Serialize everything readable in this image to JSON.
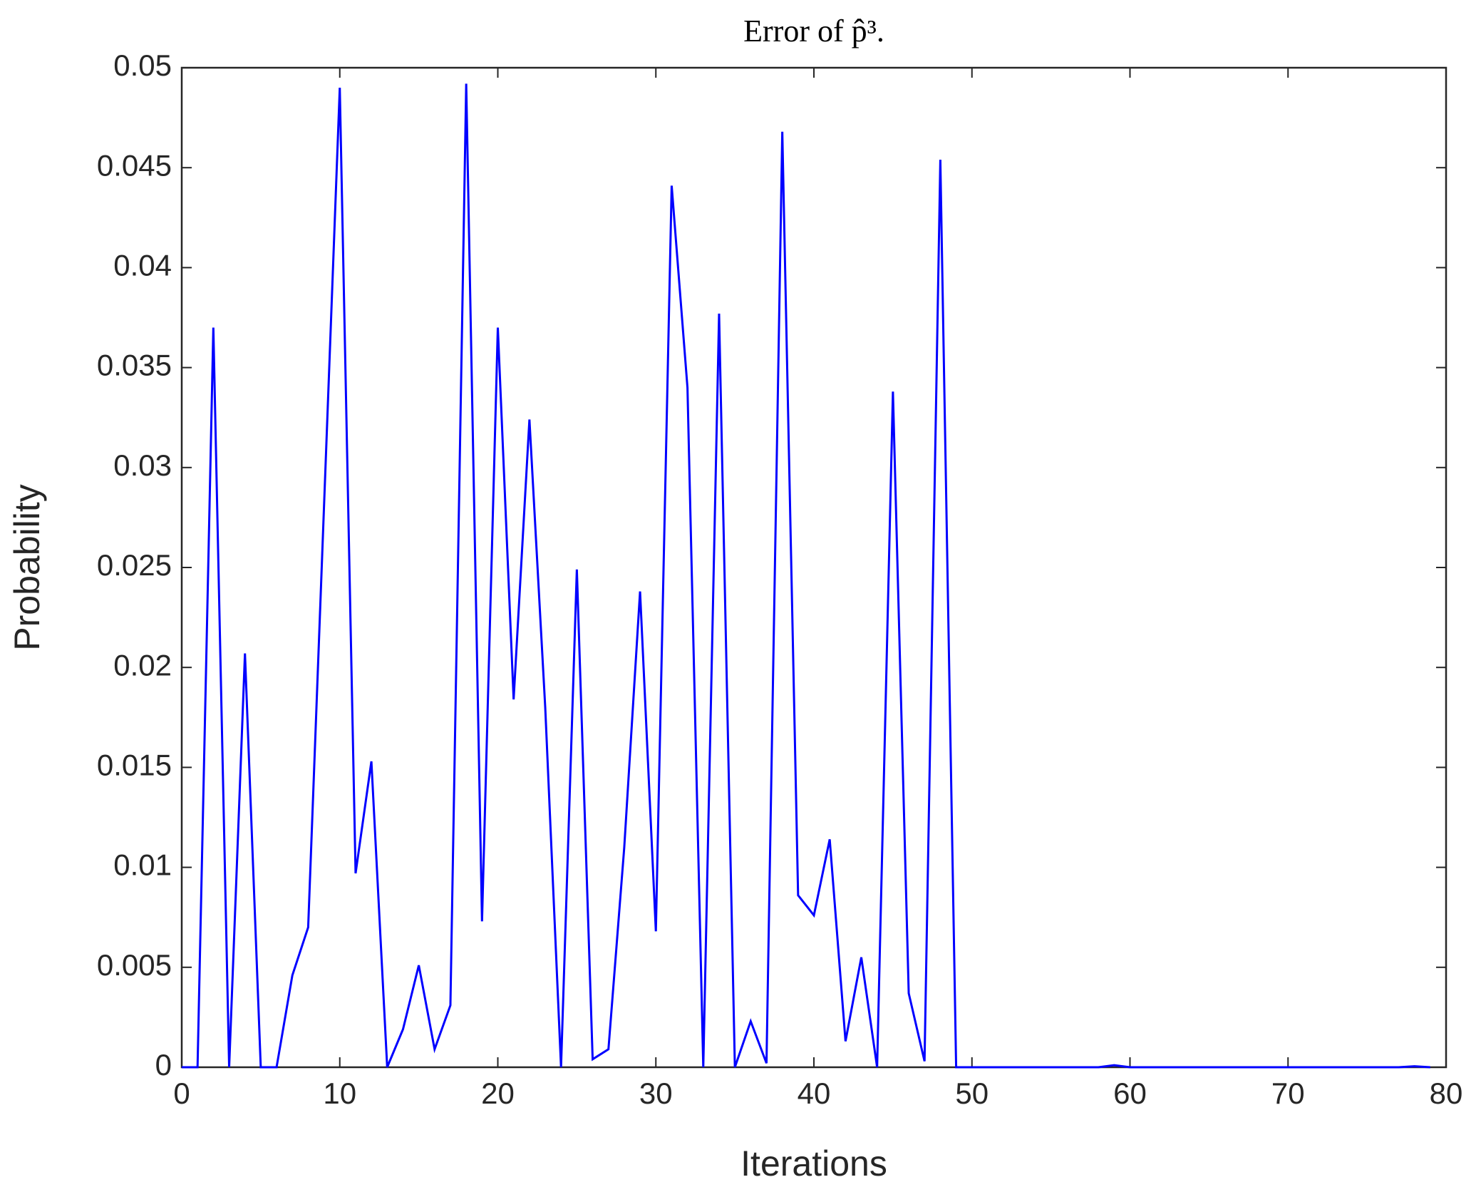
{
  "chart_data": {
    "type": "line",
    "title": "Error of p̂³.",
    "xlabel": "Iterations",
    "ylabel": "Probability",
    "x": [
      0,
      1,
      2,
      3,
      4,
      5,
      6,
      7,
      8,
      9,
      10,
      11,
      12,
      13,
      14,
      15,
      16,
      17,
      18,
      19,
      20,
      21,
      22,
      23,
      24,
      25,
      26,
      27,
      28,
      29,
      30,
      31,
      32,
      33,
      34,
      35,
      36,
      37,
      38,
      39,
      40,
      41,
      42,
      43,
      44,
      45,
      46,
      47,
      48,
      49,
      50,
      51,
      52,
      53,
      54,
      55,
      56,
      57,
      58,
      59,
      60,
      61,
      62,
      63,
      64,
      65,
      66,
      67,
      68,
      69,
      70,
      71,
      72,
      73,
      74,
      75,
      76,
      77,
      78,
      79
    ],
    "series": [
      {
        "name": "error",
        "color": "#0000ff",
        "values": [
          0,
          0,
          0.037,
          0,
          0.0207,
          0,
          0,
          0.0046,
          0.007,
          0.028,
          0.049,
          0.0097,
          0.0153,
          0,
          0.0019,
          0.0051,
          0.0009,
          0.0031,
          0.0492,
          0.0073,
          0.037,
          0.0184,
          0.0324,
          0.018,
          0,
          0.0249,
          0.0004,
          0.0009,
          0.011,
          0.0238,
          0.0068,
          0.0441,
          0.034,
          0,
          0.0377,
          0,
          0.0023,
          0.0002,
          0.0468,
          0.0086,
          0.0076,
          0.0114,
          0.0013,
          0.0055,
          0,
          0.0338,
          0.0037,
          0.0003,
          0.0454,
          0,
          0,
          0,
          0,
          0,
          0,
          0,
          0,
          0,
          0,
          0.0001,
          0,
          0,
          0,
          0,
          0,
          0,
          0,
          0,
          0,
          0,
          0,
          0,
          0,
          0,
          0,
          0,
          0,
          0,
          5e-05,
          0
        ]
      }
    ],
    "xlim": [
      0,
      80
    ],
    "xticks": [
      0,
      10,
      20,
      30,
      40,
      50,
      60,
      70,
      80
    ],
    "ylim": [
      0,
      0.05
    ],
    "yticks": [
      0,
      0.005,
      0.01,
      0.015,
      0.02,
      0.025,
      0.03,
      0.035,
      0.04,
      0.045,
      0.05
    ]
  }
}
